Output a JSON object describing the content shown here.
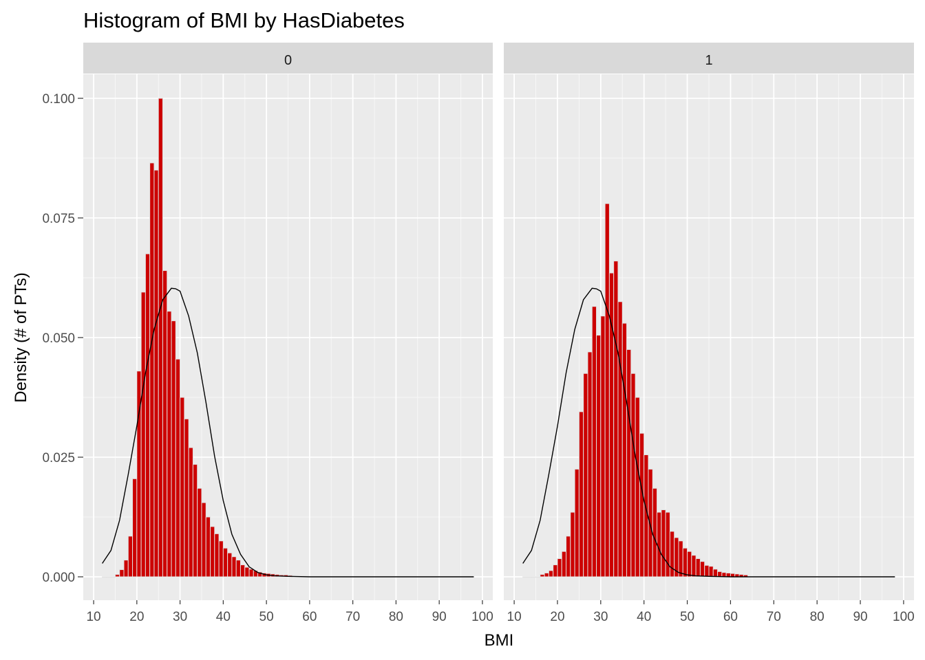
{
  "chart_data": {
    "type": "bar",
    "title": "Histogram of BMI by HasDiabetes",
    "xlabel": "BMI",
    "ylabel": "Density (# of PTs)",
    "xlim": [
      10,
      100
    ],
    "ylim": [
      0,
      0.1
    ],
    "x_ticks": [
      "10",
      "20",
      "30",
      "40",
      "50",
      "60",
      "70",
      "80",
      "90",
      "100"
    ],
    "y_ticks": [
      "0.000",
      "0.025",
      "0.050",
      "0.075",
      "0.100"
    ],
    "bin_start": 12,
    "bin_width": 1,
    "bar_fill": "#cc0000",
    "bar_outline": "#e0e0e0",
    "curve_color": "#000000",
    "panel_background": "#ebebeb",
    "strip_background": "#d9d9d9",
    "grid": true,
    "facets": [
      {
        "label": "0",
        "density": [
          0,
          0,
          0,
          0.0005,
          0.0015,
          0.0035,
          0.0085,
          0.0205,
          0.043,
          0.0595,
          0.0675,
          0.0865,
          0.085,
          0.1,
          0.064,
          0.0555,
          0.0535,
          0.0455,
          0.0375,
          0.033,
          0.027,
          0.0235,
          0.0185,
          0.0155,
          0.0125,
          0.0105,
          0.009,
          0.0075,
          0.006,
          0.005,
          0.0042,
          0.0035,
          0.0025,
          0.002,
          0.0016,
          0.0013,
          0.001,
          0.0008,
          0.0007,
          0.0006,
          0.0005,
          0.0004,
          0.0004,
          0.0003
        ],
        "normal_curve": [
          [
            12,
            0.0028
          ],
          [
            14,
            0.0055
          ],
          [
            16,
            0.0118
          ],
          [
            18,
            0.0214
          ],
          [
            20,
            0.0315
          ],
          [
            22,
            0.0426
          ],
          [
            24,
            0.0517
          ],
          [
            26,
            0.0579
          ],
          [
            28,
            0.0603
          ],
          [
            29,
            0.0602
          ],
          [
            30,
            0.0597
          ],
          [
            32,
            0.0545
          ],
          [
            34,
            0.0468
          ],
          [
            36,
            0.0365
          ],
          [
            38,
            0.0252
          ],
          [
            40,
            0.0159
          ],
          [
            42,
            0.0089
          ],
          [
            44,
            0.0047
          ],
          [
            46,
            0.0021
          ],
          [
            48,
            0.0009
          ],
          [
            50,
            0.0004
          ],
          [
            52,
            0.0002
          ],
          [
            55,
            0.0001
          ],
          [
            60,
            0.0
          ],
          [
            98,
            0.0
          ]
        ]
      },
      {
        "label": "1",
        "density": [
          0,
          0,
          0,
          0,
          0.0005,
          0.0008,
          0.0013,
          0.0025,
          0.0038,
          0.0053,
          0.0085,
          0.0135,
          0.0225,
          0.0345,
          0.0425,
          0.047,
          0.0565,
          0.0505,
          0.0545,
          0.078,
          0.0635,
          0.066,
          0.0575,
          0.053,
          0.0475,
          0.0425,
          0.0375,
          0.03,
          0.0255,
          0.0225,
          0.0185,
          0.0135,
          0.014,
          0.0135,
          0.0095,
          0.0082,
          0.0075,
          0.006,
          0.0053,
          0.0045,
          0.0038,
          0.0032,
          0.0024,
          0.0022,
          0.0016,
          0.0011,
          0.0009,
          0.0008,
          0.0007,
          0.0006,
          0.0005,
          0.0004
        ],
        "normal_curve": [
          [
            12,
            0.0028
          ],
          [
            14,
            0.0055
          ],
          [
            16,
            0.0118
          ],
          [
            18,
            0.0214
          ],
          [
            20,
            0.0315
          ],
          [
            22,
            0.0426
          ],
          [
            24,
            0.0517
          ],
          [
            26,
            0.0579
          ],
          [
            28,
            0.0603
          ],
          [
            29,
            0.0602
          ],
          [
            30,
            0.0597
          ],
          [
            32,
            0.0545
          ],
          [
            34,
            0.0468
          ],
          [
            36,
            0.0365
          ],
          [
            38,
            0.0252
          ],
          [
            40,
            0.0159
          ],
          [
            42,
            0.0089
          ],
          [
            44,
            0.0047
          ],
          [
            46,
            0.0021
          ],
          [
            48,
            0.0009
          ],
          [
            50,
            0.0004
          ],
          [
            52,
            0.0002
          ],
          [
            55,
            0.0001
          ],
          [
            60,
            0.0
          ],
          [
            98,
            0.0
          ]
        ]
      }
    ]
  }
}
